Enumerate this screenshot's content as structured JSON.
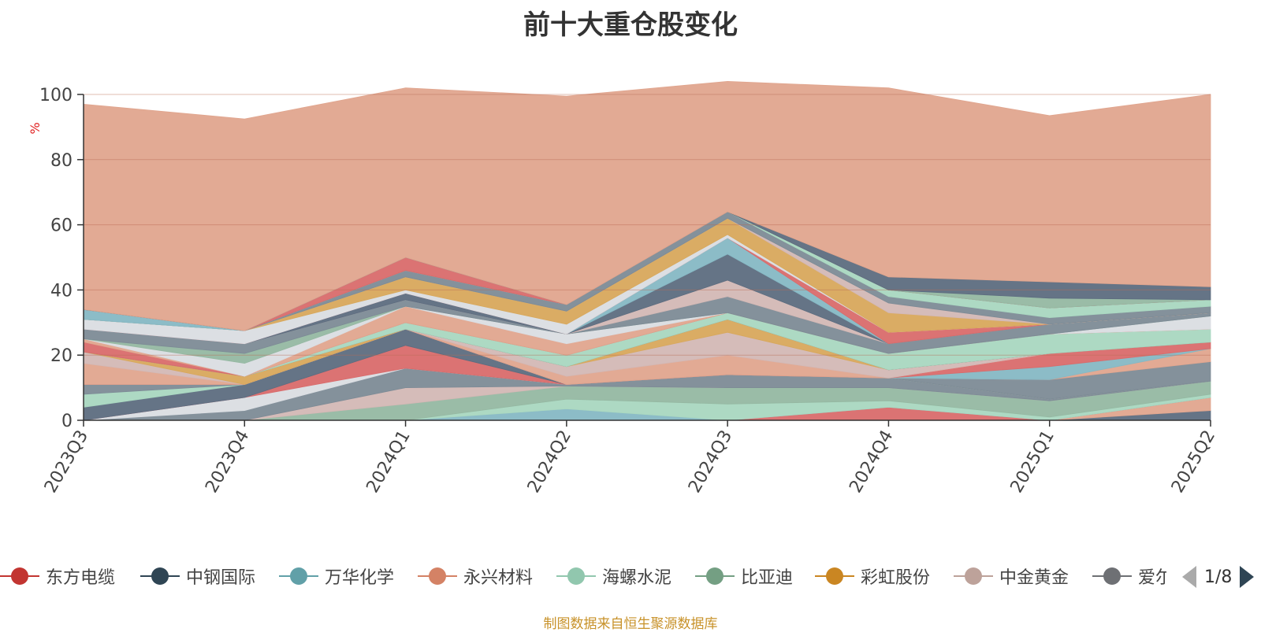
{
  "title": "前十大重仓股变化",
  "source_note": "制图数据来自恒生聚源数据库",
  "legend_pager": "1/8",
  "chart_data": {
    "type": "area",
    "stacked": true,
    "title": "前十大重仓股变化",
    "xlabel": "",
    "ylabel": "%",
    "ylim": [
      0,
      100
    ],
    "y_ticks": [
      "0",
      "20",
      "40",
      "60",
      "80",
      "100"
    ],
    "grid": true,
    "x": [
      "2023Q3",
      "2023Q4",
      "2024Q1",
      "2024Q2",
      "2024Q3",
      "2024Q4",
      "2025Q1",
      "2025Q2"
    ],
    "series": [
      {
        "color": "#5d6d80",
        "values": [
          0,
          0,
          0,
          0,
          0,
          0,
          0,
          3
        ]
      },
      {
        "color": "#e0a58e",
        "values": [
          0,
          0,
          0,
          0,
          0,
          0,
          0,
          4
        ]
      },
      {
        "color": "#d96b6b",
        "values": [
          0,
          0,
          0,
          0,
          0,
          4,
          0,
          0
        ]
      },
      {
        "color": "#86b8c4",
        "values": [
          0,
          0,
          0,
          3.5,
          0,
          0,
          0,
          0
        ]
      },
      {
        "color": "#a9d7c0",
        "values": [
          0,
          0,
          0,
          3,
          5,
          2,
          1,
          1
        ]
      },
      {
        "color": "#95b8a2",
        "values": [
          0,
          0,
          5,
          4,
          5,
          4,
          5,
          4
        ]
      },
      {
        "color": "#d3b8b5",
        "values": [
          0,
          0,
          5,
          0,
          0,
          0,
          0,
          0
        ]
      },
      {
        "color": "#7d8b96",
        "values": [
          0,
          3,
          6,
          0.5,
          4,
          3,
          0.5,
          0
        ]
      },
      {
        "color": "#dadde2",
        "values": [
          0,
          4,
          0,
          0,
          0,
          0,
          0,
          0
        ]
      },
      {
        "color": "#d96b6b",
        "values": [
          0,
          0,
          7,
          0,
          0,
          0,
          0,
          0
        ]
      },
      {
        "color": "#5d6d80",
        "values": [
          4,
          4,
          5,
          0,
          0,
          0,
          0,
          0
        ]
      },
      {
        "color": "#a9d7c0",
        "values": [
          4,
          0,
          0,
          0,
          0,
          0,
          0,
          0
        ]
      },
      {
        "color": "#7d8b96",
        "values": [
          3,
          0,
          0,
          0,
          0,
          0,
          6,
          6
        ]
      },
      {
        "color": "#e0a58e",
        "values": [
          0,
          0,
          0,
          0,
          0,
          0,
          0,
          4
        ]
      },
      {
        "color": "#86b8c4",
        "values": [
          0,
          0,
          0,
          0,
          0,
          0,
          4,
          0
        ]
      },
      {
        "color": "#d96b6b",
        "values": [
          0,
          0,
          0,
          0,
          0,
          0,
          4,
          2
        ]
      },
      {
        "color": "#e0a58e",
        "values": [
          6.5,
          0,
          0,
          2.5,
          6,
          0,
          0,
          0
        ]
      },
      {
        "color": "#d3b8b5",
        "values": [
          3.5,
          0,
          0,
          3,
          7,
          2.5,
          0,
          0
        ]
      },
      {
        "color": "#d8a85c",
        "values": [
          0,
          2.5,
          0,
          0,
          4,
          0,
          0,
          0
        ]
      },
      {
        "color": "#5d6d80",
        "values": [
          0,
          0,
          0,
          0,
          0,
          0,
          0,
          0
        ]
      },
      {
        "color": "#a9d7c0",
        "values": [
          0,
          0,
          2,
          3.5,
          2,
          5,
          6,
          4
        ]
      },
      {
        "color": "#d96b6b",
        "values": [
          3,
          0,
          0,
          0,
          0,
          0,
          0,
          0
        ]
      },
      {
        "color": "#e0a58e",
        "values": [
          1,
          0,
          5,
          3.5,
          0,
          0,
          0,
          0
        ]
      },
      {
        "color": "#dadde2",
        "values": [
          0,
          4,
          0,
          3,
          0,
          0,
          0,
          4
        ]
      },
      {
        "color": "#95b8a2",
        "values": [
          0,
          3,
          0,
          0,
          0,
          0,
          0,
          0
        ]
      },
      {
        "color": "#7d8b96",
        "values": [
          3,
          3,
          2,
          0,
          5,
          3,
          3,
          1
        ]
      },
      {
        "color": "#d3b8b5",
        "values": [
          0,
          0,
          0,
          0,
          5,
          0,
          0,
          0
        ]
      },
      {
        "color": "#5d6d80",
        "values": [
          0,
          0,
          2,
          0,
          8,
          0,
          0,
          0
        ]
      },
      {
        "color": "#86b8c4",
        "values": [
          0,
          0,
          0,
          0,
          5,
          0,
          0,
          0
        ]
      },
      {
        "color": "#d96b6b",
        "values": [
          0,
          0,
          0,
          0,
          0,
          3.5,
          0,
          0
        ]
      },
      {
        "color": "#dadde2",
        "values": [
          3,
          4,
          1,
          3,
          1,
          0,
          0,
          0
        ]
      },
      {
        "color": "#d8a85c",
        "values": [
          0,
          0,
          4,
          4,
          5,
          6,
          0,
          0
        ]
      },
      {
        "color": "#d3b8b5",
        "values": [
          0,
          0,
          0,
          0,
          0,
          3,
          0,
          0
        ]
      },
      {
        "color": "#7d8b96",
        "values": [
          0,
          0,
          2,
          2,
          2,
          2,
          2,
          2
        ]
      },
      {
        "color": "#a9d7c0",
        "values": [
          0,
          0,
          0,
          0,
          0,
          2,
          3,
          2
        ]
      },
      {
        "color": "#86b8c4",
        "values": [
          3,
          0,
          0,
          0,
          0,
          0,
          0,
          0
        ]
      },
      {
        "color": "#d96b6b",
        "values": [
          0,
          0,
          4,
          0,
          0,
          0,
          0,
          0
        ]
      },
      {
        "color": "#95b8a2",
        "values": [
          0,
          0,
          0,
          0,
          0,
          0,
          3,
          0
        ]
      },
      {
        "color": "#5d6d80",
        "values": [
          0,
          0,
          0,
          0,
          0,
          4,
          5,
          4
        ]
      },
      {
        "color": "#e0a58e",
        "values": [
          63,
          65,
          52,
          64,
          40,
          58,
          51,
          59
        ]
      }
    ],
    "legend": {
      "placement": "bottom",
      "entries": [
        {
          "name": "东方电缆",
          "color": "#c23531"
        },
        {
          "name": "中钢国际",
          "color": "#2f4554"
        },
        {
          "name": "万华化学",
          "color": "#61a0a8"
        },
        {
          "name": "永兴材料",
          "color": "#d48265"
        },
        {
          "name": "海螺水泥",
          "color": "#91c7ae"
        },
        {
          "name": "比亚迪",
          "color": "#749f83"
        },
        {
          "name": "彩虹股份",
          "color": "#ca8622"
        },
        {
          "name": "中金黄金",
          "color": "#bda29a"
        },
        {
          "name": "爱尔眼科",
          "color": "#6e7074"
        }
      ]
    }
  }
}
